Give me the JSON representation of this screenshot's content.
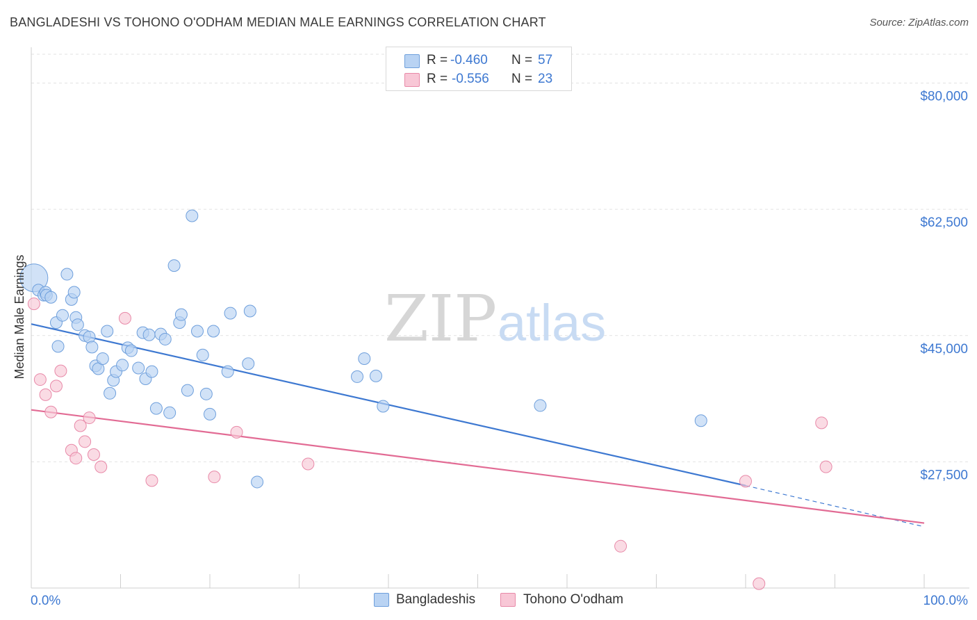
{
  "title": "BANGLADESHI VS TOHONO O'ODHAM MEDIAN MALE EARNINGS CORRELATION CHART",
  "source": "Source: ZipAtlas.com",
  "watermark": {
    "zip": "ZIP",
    "atlas": "atlas"
  },
  "legend": {
    "r_label": "R =",
    "n_label": "N =",
    "series": [
      {
        "name": "Bangladeshis",
        "r": "-0.460",
        "n": "57",
        "fill": "#b9d3f3",
        "stroke": "#6e9fdc"
      },
      {
        "name": "Tohono O'odham",
        "r": "-0.556",
        "n": "23",
        "fill": "#f8c7d6",
        "stroke": "#e889a8"
      }
    ]
  },
  "chart_data": {
    "type": "scatter",
    "title": "BANGLADESHI VS TOHONO O'ODHAM MEDIAN MALE EARNINGS CORRELATION CHART",
    "xlabel": "",
    "ylabel": "Median Male Earnings",
    "xlim": [
      0,
      100
    ],
    "ylim": [
      10000,
      84000
    ],
    "x_tick_labels": [
      "0.0%",
      "100.0%"
    ],
    "y_ticks": [
      27500,
      45000,
      62500,
      80000
    ],
    "y_tick_labels": [
      "$27,500",
      "$45,000",
      "$62,500",
      "$80,000"
    ],
    "grid": true,
    "series": [
      {
        "name": "Bangladeshis",
        "color": "#3d78d1",
        "fill": "#b9d3f3",
        "points": [
          [
            0.3,
            53000
          ],
          [
            0.8,
            51300
          ],
          [
            1.4,
            50600
          ],
          [
            1.6,
            51000
          ],
          [
            1.7,
            50600
          ],
          [
            2.2,
            50300
          ],
          [
            2.8,
            46800
          ],
          [
            3.0,
            43500
          ],
          [
            3.5,
            47800
          ],
          [
            4.0,
            53500
          ],
          [
            4.5,
            50000
          ],
          [
            4.8,
            51000
          ],
          [
            5.0,
            47500
          ],
          [
            5.2,
            46500
          ],
          [
            6.0,
            45000
          ],
          [
            6.5,
            44800
          ],
          [
            6.8,
            43400
          ],
          [
            7.2,
            40800
          ],
          [
            7.5,
            40400
          ],
          [
            8.0,
            41800
          ],
          [
            8.5,
            45600
          ],
          [
            8.8,
            37000
          ],
          [
            9.2,
            38800
          ],
          [
            9.5,
            40000
          ],
          [
            10.2,
            40900
          ],
          [
            10.8,
            43300
          ],
          [
            11.2,
            42900
          ],
          [
            12.0,
            40500
          ],
          [
            12.5,
            45400
          ],
          [
            12.8,
            39000
          ],
          [
            13.2,
            45100
          ],
          [
            13.5,
            40000
          ],
          [
            14.0,
            34900
          ],
          [
            14.5,
            45200
          ],
          [
            15.0,
            44500
          ],
          [
            15.5,
            34300
          ],
          [
            16.0,
            54700
          ],
          [
            16.6,
            46800
          ],
          [
            16.8,
            47900
          ],
          [
            17.5,
            37400
          ],
          [
            18.0,
            61600
          ],
          [
            18.6,
            45600
          ],
          [
            19.2,
            42300
          ],
          [
            19.6,
            36900
          ],
          [
            20.0,
            34100
          ],
          [
            20.4,
            45600
          ],
          [
            22.0,
            40000
          ],
          [
            22.3,
            48100
          ],
          [
            24.3,
            41100
          ],
          [
            24.5,
            48400
          ],
          [
            25.3,
            24700
          ],
          [
            36.5,
            39300
          ],
          [
            37.3,
            41800
          ],
          [
            38.6,
            39400
          ],
          [
            39.4,
            35200
          ],
          [
            57.0,
            35300
          ],
          [
            75.0,
            33200
          ]
        ],
        "sizes": {
          "0.3,53000": "large"
        },
        "trend": {
          "x": [
            0,
            80
          ],
          "y": [
            46600,
            24200
          ],
          "dashed_to": [
            100,
            18500
          ]
        }
      },
      {
        "name": "Tohono O'odham",
        "color": "#e26b94",
        "fill": "#f8c7d6",
        "points": [
          [
            0.3,
            49400
          ],
          [
            1.0,
            38900
          ],
          [
            1.6,
            36800
          ],
          [
            2.2,
            34400
          ],
          [
            2.8,
            38000
          ],
          [
            3.3,
            40100
          ],
          [
            4.5,
            29100
          ],
          [
            5.0,
            28000
          ],
          [
            5.5,
            32500
          ],
          [
            6.0,
            30300
          ],
          [
            6.5,
            33600
          ],
          [
            7.0,
            28500
          ],
          [
            7.8,
            26800
          ],
          [
            10.5,
            47400
          ],
          [
            13.5,
            24900
          ],
          [
            20.5,
            25400
          ],
          [
            23.0,
            31600
          ],
          [
            31.0,
            27200
          ],
          [
            66.0,
            15800
          ],
          [
            80.0,
            24800
          ],
          [
            81.5,
            10600
          ],
          [
            88.5,
            32900
          ],
          [
            89.0,
            26800
          ]
        ],
        "trend": {
          "x": [
            0,
            100
          ],
          "y": [
            34700,
            19000
          ]
        }
      }
    ]
  }
}
